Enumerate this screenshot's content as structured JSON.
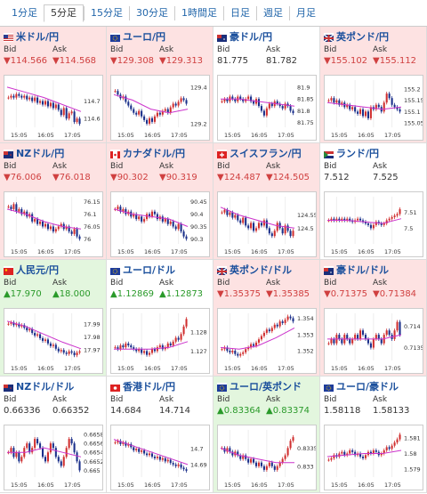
{
  "tabs": [
    {
      "label": "1分足",
      "active": false
    },
    {
      "label": "5分足",
      "active": true
    },
    {
      "label": "15分足",
      "active": false
    },
    {
      "label": "30分足",
      "active": false
    },
    {
      "label": "1時間足",
      "active": false
    },
    {
      "label": "日足",
      "active": false
    },
    {
      "label": "週足",
      "active": false
    },
    {
      "label": "月足",
      "active": false
    }
  ],
  "bid_label": "Bid",
  "ask_label": "Ask",
  "x_ticks": [
    "15:05",
    "16:05",
    "17:05"
  ],
  "colors": {
    "down_bg": "#fde2e2",
    "up_bg": "#e3f6de",
    "down_text": "#d04040",
    "up_text": "#2a9a2a",
    "candle_up": "#d03030",
    "candle_down": "#1a2f8a",
    "ma": "#cc33cc"
  },
  "pairs": [
    {
      "name": "米ドル/円",
      "flag": "us-flag-icon",
      "dir": "down",
      "bid": "▼114.566",
      "ask": "▼114.568",
      "yticks": [
        "114.7",
        "114.6"
      ],
      "ylim": [
        114.55,
        114.82
      ],
      "closes": [
        114.72,
        114.73,
        114.72,
        114.74,
        114.73,
        114.72,
        114.73,
        114.71,
        114.72,
        114.7,
        114.72,
        114.69,
        114.7,
        114.68,
        114.7,
        114.67,
        114.69,
        114.66,
        114.68,
        114.65,
        114.62,
        114.66,
        114.6,
        114.63,
        114.64,
        114.58,
        114.6,
        114.57
      ],
      "ma": [
        114.78,
        114.75,
        114.72,
        114.68,
        114.64
      ]
    },
    {
      "name": "ユーロ/円",
      "flag": "eu-flag-icon",
      "dir": "down",
      "bid": "▼129.308",
      "ask": "▼129.313",
      "yticks": [
        "129.4",
        "129.2"
      ],
      "ylim": [
        129.18,
        129.44
      ],
      "closes": [
        129.38,
        129.36,
        129.34,
        129.35,
        129.32,
        129.3,
        129.28,
        129.26,
        129.25,
        129.27,
        129.24,
        129.22,
        129.2,
        129.23,
        129.21,
        129.24,
        129.26,
        129.25,
        129.27,
        129.28,
        129.26,
        129.29,
        129.31,
        129.3,
        129.32,
        129.34,
        129.33,
        129.31
      ],
      "ma": [
        129.36,
        129.33,
        129.28,
        129.26,
        129.28
      ]
    },
    {
      "name": "豪ドル/円",
      "flag": "au-flag-icon",
      "dir": "flat",
      "bid": "81.775",
      "ask": "81.782",
      "yticks": [
        "81.9",
        "81.85",
        "81.8",
        "81.75"
      ],
      "ylim": [
        81.73,
        81.93
      ],
      "closes": [
        81.84,
        81.85,
        81.84,
        81.86,
        81.85,
        81.84,
        81.86,
        81.85,
        81.84,
        81.85,
        81.86,
        81.84,
        81.83,
        81.85,
        81.82,
        81.8,
        81.78,
        81.81,
        81.83,
        81.82,
        81.84,
        81.83,
        81.82,
        81.81,
        81.83,
        81.82,
        81.8,
        81.79
      ],
      "ma": [
        81.85,
        81.85,
        81.84,
        81.83,
        81.82
      ]
    },
    {
      "name": "英ポンド/円",
      "flag": "uk-flag-icon",
      "dir": "down",
      "bid": "▼155.102",
      "ask": "▼155.112",
      "yticks": [
        "155.2",
        "155.15",
        "155.1",
        "155.05"
      ],
      "ylim": [
        155.03,
        155.24
      ],
      "closes": [
        155.15,
        155.16,
        155.14,
        155.15,
        155.13,
        155.14,
        155.12,
        155.13,
        155.11,
        155.12,
        155.1,
        155.09,
        155.11,
        155.08,
        155.1,
        155.07,
        155.12,
        155.11,
        155.13,
        155.12,
        155.1,
        155.14,
        155.18,
        155.16,
        155.13,
        155.12,
        155.11,
        155.1
      ],
      "ma": [
        155.14,
        155.13,
        155.12,
        155.11,
        155.12
      ]
    },
    {
      "name": "NZドル/円",
      "flag": "nz-flag-icon",
      "dir": "down",
      "bid": "▼76.006",
      "ask": "▼76.018",
      "yticks": [
        "76.15",
        "76.1",
        "76.05",
        "76"
      ],
      "ylim": [
        75.98,
        76.17
      ],
      "closes": [
        76.13,
        76.12,
        76.14,
        76.11,
        76.12,
        76.1,
        76.11,
        76.09,
        76.1,
        76.07,
        76.08,
        76.06,
        76.07,
        76.05,
        76.06,
        76.04,
        76.05,
        76.03,
        76.04,
        76.05,
        76.06,
        76.04,
        76.05,
        76.03,
        76.02,
        76.04,
        76.01,
        76.0
      ],
      "ma": [
        76.12,
        76.1,
        76.07,
        76.05,
        76.04
      ]
    },
    {
      "name": "カナダドル/円",
      "flag": "ca-flag-icon",
      "dir": "down",
      "bid": "▼90.302",
      "ask": "▼90.319",
      "yticks": [
        "90.45",
        "90.4",
        "90.35",
        "90.3"
      ],
      "ylim": [
        90.28,
        90.47
      ],
      "closes": [
        90.42,
        90.43,
        90.41,
        90.42,
        90.4,
        90.41,
        90.39,
        90.4,
        90.38,
        90.39,
        90.37,
        90.38,
        90.4,
        90.39,
        90.41,
        90.4,
        90.38,
        90.39,
        90.37,
        90.38,
        90.36,
        90.37,
        90.35,
        90.34,
        90.36,
        90.33,
        90.31,
        90.3
      ],
      "ma": [
        90.42,
        90.4,
        90.39,
        90.38,
        90.35
      ]
    },
    {
      "name": "スイスフラン/円",
      "flag": "ch-flag-icon",
      "dir": "down",
      "bid": "▼124.487",
      "ask": "▼124.505",
      "yticks": [
        "124.55",
        "124.5"
      ],
      "ylim": [
        124.44,
        124.62
      ],
      "closes": [
        124.56,
        124.57,
        124.55,
        124.56,
        124.54,
        124.55,
        124.53,
        124.52,
        124.54,
        124.51,
        124.5,
        124.52,
        124.49,
        124.5,
        124.52,
        124.51,
        124.53,
        124.5,
        124.48,
        124.47,
        124.49,
        124.52,
        124.5,
        124.48,
        124.51,
        124.49,
        124.47,
        124.49
      ],
      "ma": [
        124.58,
        124.55,
        124.53,
        124.51,
        124.5
      ]
    },
    {
      "name": "ランド/円",
      "flag": "za-flag-icon",
      "dir": "flat",
      "bid": "7.512",
      "ask": "7.525",
      "yticks": [
        "7.51",
        "7.5"
      ],
      "ylim": [
        7.49,
        7.52
      ],
      "closes": [
        7.505,
        7.506,
        7.505,
        7.506,
        7.505,
        7.506,
        7.505,
        7.506,
        7.505,
        7.504,
        7.505,
        7.506,
        7.505,
        7.504,
        7.503,
        7.502,
        7.5,
        7.502,
        7.504,
        7.503,
        7.502,
        7.503,
        7.505,
        7.506,
        7.507,
        7.508,
        7.509,
        7.512
      ],
      "ma": [
        7.505,
        7.505,
        7.504,
        7.503,
        7.506
      ]
    },
    {
      "name": "人民元/円",
      "flag": "cn-flag-icon",
      "dir": "up",
      "bid": "▲17.970",
      "ask": "▲18.000",
      "yticks": [
        "17.99",
        "17.98",
        "17.97"
      ],
      "ylim": [
        17.962,
        17.998
      ],
      "closes": [
        17.99,
        17.991,
        17.989,
        17.99,
        17.988,
        17.989,
        17.987,
        17.985,
        17.986,
        17.983,
        17.981,
        17.982,
        17.979,
        17.977,
        17.978,
        17.975,
        17.973,
        17.974,
        17.971,
        17.969,
        17.97,
        17.968,
        17.967,
        17.969,
        17.968,
        17.966,
        17.968,
        17.969
      ],
      "ma": [
        17.992,
        17.988,
        17.982,
        17.976,
        17.971
      ]
    },
    {
      "name": "ユーロ/ドル",
      "flag": "eu-flag-icon",
      "dir": "flat",
      "bid": "▲1.12869",
      "ask": "▲1.12873",
      "yticks": [
        "1.128",
        "1.127"
      ],
      "ylim": [
        1.1265,
        1.129
      ],
      "closes": [
        1.1272,
        1.1271,
        1.1273,
        1.1272,
        1.1274,
        1.1273,
        1.1272,
        1.1271,
        1.127,
        1.1271,
        1.1269,
        1.127,
        1.1268,
        1.1269,
        1.1271,
        1.127,
        1.1272,
        1.1273,
        1.1271,
        1.1272,
        1.1274,
        1.1273,
        1.1275,
        1.1277,
        1.1276,
        1.1279,
        1.1283,
        1.1287
      ],
      "ma": [
        1.1271,
        1.1271,
        1.1271,
        1.1272,
        1.1275
      ]
    },
    {
      "name": "英ポンド/ドル",
      "flag": "uk-flag-icon",
      "dir": "down",
      "bid": "▼1.35375",
      "ask": "▼1.35385",
      "yticks": [
        "1.354",
        "1.353",
        "1.352"
      ],
      "ylim": [
        1.3514,
        1.3543
      ],
      "closes": [
        1.3521,
        1.3522,
        1.352,
        1.3519,
        1.352,
        1.3518,
        1.3517,
        1.3518,
        1.3519,
        1.3521,
        1.3522,
        1.3524,
        1.3523,
        1.3525,
        1.3527,
        1.3529,
        1.3531,
        1.3533,
        1.3532,
        1.3534,
        1.3536,
        1.3535,
        1.3538,
        1.3537,
        1.3539,
        1.3541,
        1.354,
        1.3538
      ],
      "ma": [
        1.3522,
        1.3521,
        1.3523,
        1.3528,
        1.3534
      ]
    },
    {
      "name": "豪ドル/ドル",
      "flag": "au-flag-icon",
      "dir": "down",
      "bid": "▼0.71375",
      "ask": "▼0.71384",
      "yticks": [
        "0.714",
        "0.7135"
      ],
      "ylim": [
        0.7132,
        0.7143
      ],
      "closes": [
        0.7136,
        0.7137,
        0.7136,
        0.7138,
        0.7137,
        0.7136,
        0.7138,
        0.7137,
        0.7136,
        0.7137,
        0.7138,
        0.7137,
        0.7139,
        0.7138,
        0.7137,
        0.7136,
        0.7135,
        0.7137,
        0.7138,
        0.7137,
        0.7136,
        0.7138,
        0.7139,
        0.7138,
        0.7137,
        0.7139,
        0.7141,
        0.7138
      ],
      "ma": [
        0.7137,
        0.7137,
        0.7137,
        0.7137,
        0.7138
      ]
    },
    {
      "name": "NZドル/ドル",
      "flag": "nz-flag-icon",
      "dir": "flat",
      "bid": "0.66336",
      "ask": "0.66352",
      "yticks": [
        "0.6658",
        "0.6656",
        "0.6654",
        "0.6652",
        "0.665"
      ],
      "ylim": [
        0.66485,
        0.6659
      ],
      "closes": [
        0.6654,
        0.6655,
        0.6653,
        0.6654,
        0.6652,
        0.6653,
        0.6655,
        0.6656,
        0.6654,
        0.6655,
        0.6657,
        0.6656,
        0.6655,
        0.6653,
        0.6652,
        0.6654,
        0.6656,
        0.6655,
        0.6653,
        0.6652,
        0.6651,
        0.6653,
        0.6655,
        0.6657,
        0.6656,
        0.6654,
        0.6652,
        0.665
      ],
      "ma": [
        0.6654,
        0.6654,
        0.6655,
        0.6654,
        0.6653
      ]
    },
    {
      "name": "香港ドル/円",
      "flag": "hk-flag-icon",
      "dir": "flat",
      "bid": "14.684",
      "ask": "14.714",
      "yticks": [
        "14.7",
        "14.69"
      ],
      "ylim": [
        14.682,
        14.712
      ],
      "closes": [
        14.704,
        14.705,
        14.703,
        14.704,
        14.702,
        14.703,
        14.701,
        14.699,
        14.7,
        14.698,
        14.699,
        14.697,
        14.696,
        14.697,
        14.695,
        14.694,
        14.695,
        14.693,
        14.694,
        14.692,
        14.693,
        14.691,
        14.69,
        14.689,
        14.69,
        14.688,
        14.687,
        14.686
      ],
      "ma": [
        14.706,
        14.702,
        14.698,
        14.694,
        14.69
      ]
    },
    {
      "name": "ユーロ/英ポンド",
      "flag": "eu-flag-icon",
      "dir": "up",
      "bid": "▲0.83364",
      "ask": "▲0.83374",
      "yticks": [
        "0.8335",
        "0.833"
      ],
      "ylim": [
        0.8327,
        0.834
      ],
      "closes": [
        0.8335,
        0.8334,
        0.8335,
        0.8334,
        0.8333,
        0.8334,
        0.8333,
        0.8332,
        0.8333,
        0.8332,
        0.8331,
        0.8332,
        0.8331,
        0.833,
        0.8331,
        0.833,
        0.8329,
        0.833,
        0.8331,
        0.833,
        0.8329,
        0.833,
        0.8331,
        0.8332,
        0.8333,
        0.8335,
        0.8337,
        0.8338
      ],
      "ma": [
        0.8335,
        0.8333,
        0.8332,
        0.8331,
        0.8331
      ]
    },
    {
      "name": "ユーロ/豪ドル",
      "flag": "eu-flag-icon",
      "dir": "flat",
      "bid": "1.58118",
      "ask": "1.58133",
      "yticks": [
        "1.581",
        "1.58",
        "1.579"
      ],
      "ylim": [
        1.5785,
        1.5815
      ],
      "closes": [
        1.5796,
        1.5797,
        1.5799,
        1.5798,
        1.58,
        1.5801,
        1.5799,
        1.58,
        1.5802,
        1.5801,
        1.5799,
        1.58,
        1.5798,
        1.5797,
        1.5799,
        1.5801,
        1.58,
        1.5802,
        1.5801,
        1.5799,
        1.58,
        1.5802,
        1.5804,
        1.5803,
        1.5805,
        1.5807,
        1.5809,
        1.5812
      ],
      "ma": [
        1.5798,
        1.5799,
        1.58,
        1.58,
        1.5802
      ]
    }
  ]
}
